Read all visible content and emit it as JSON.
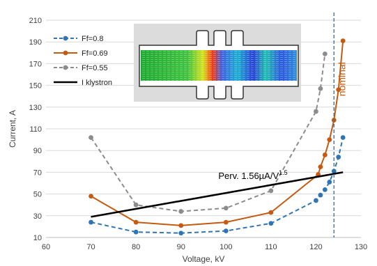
{
  "chart_data": {
    "type": "line",
    "title": "",
    "xlabel": "Voltage, kV",
    "ylabel": "Current, A",
    "xlim": [
      60,
      130
    ],
    "ylim": [
      10,
      210
    ],
    "x_ticks": [
      "60",
      "70",
      "80",
      "90",
      "100",
      "110",
      "120",
      "130"
    ],
    "y_ticks": [
      "10",
      "30",
      "50",
      "70",
      "90",
      "110",
      "130",
      "150",
      "170",
      "190",
      "210"
    ],
    "grid": "horizontal",
    "legend_position": "top-left",
    "series": [
      {
        "name": "Ff=0.8",
        "color": "#2e75b6",
        "line_style": "dashed",
        "marker": "circle",
        "x": [
          70,
          80,
          90,
          100,
          110,
          120,
          121,
          122,
          123,
          124,
          125,
          126
        ],
        "y": [
          24,
          15,
          14,
          16,
          23,
          44,
          49,
          54,
          61,
          71,
          84,
          102
        ]
      },
      {
        "name": "Ff=0.69",
        "color": "#c55a11",
        "line_style": "solid",
        "marker": "circle",
        "x": [
          70,
          80,
          90,
          100,
          110,
          120.5,
          121,
          122,
          123,
          124,
          125,
          126
        ],
        "y": [
          48,
          24,
          21,
          24,
          33,
          68,
          75,
          86,
          100,
          118,
          146,
          191
        ]
      },
      {
        "name": "Ff=0.55",
        "color": "#8c8c8c",
        "line_style": "dashed",
        "marker": "circle",
        "x": [
          70,
          80,
          90,
          100,
          110,
          120,
          121,
          122
        ],
        "y": [
          102,
          40,
          34,
          37,
          53,
          126,
          147,
          179
        ]
      },
      {
        "name": "I klystron",
        "color": "#000000",
        "line_style": "solid",
        "marker": "none",
        "x": [
          70,
          126
        ],
        "y": [
          29,
          70
        ]
      }
    ],
    "annotations": {
      "perveance": {
        "text": "Perv. 1.56µA/V",
        "superscript": "1.5",
        "x": 106,
        "y": 64
      },
      "nominal": {
        "text": "nominal",
        "color": "#c55a11",
        "x": 126.5,
        "y": 140
      },
      "nominal_line_x": 124
    }
  }
}
